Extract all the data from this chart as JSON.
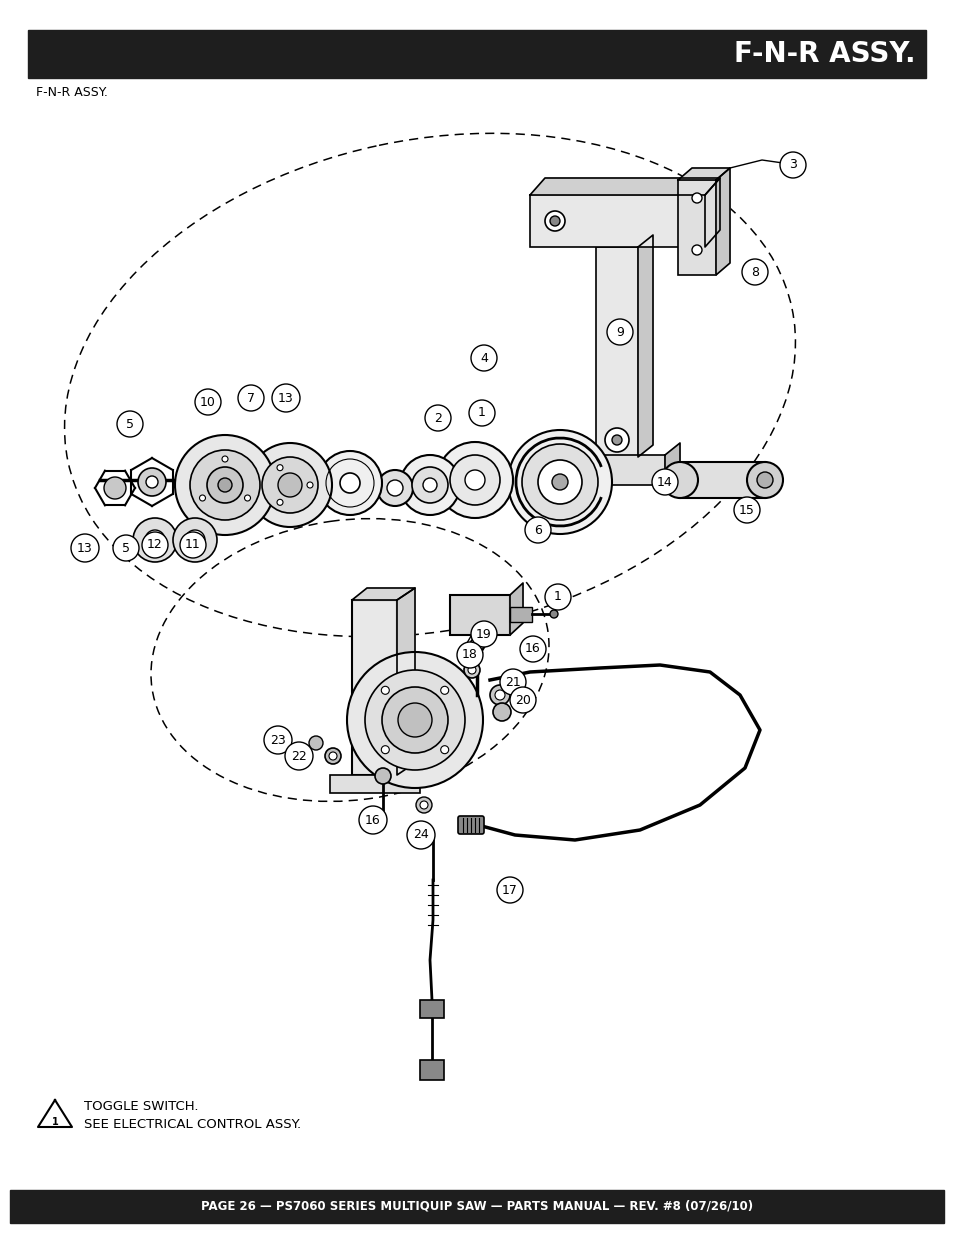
{
  "title_bar_text": "F-N-R ASSY.",
  "subtitle_text": "F-N-R ASSY.",
  "footer_text": "PAGE 26 — PS7060 SERIES MULTIQUIP SAW — PARTS MANUAL — REV. #8 (07/26/10)",
  "warning_line1": "TOGGLE SWITCH.",
  "warning_line2": "SEE ELECTRICAL CONTROL ASSY.",
  "title_bar_color": "#1e1e1e",
  "title_text_color": "#ffffff",
  "footer_bar_color": "#1e1e1e",
  "footer_text_color": "#ffffff",
  "page_bg": "#ffffff",
  "fig_width": 9.54,
  "fig_height": 12.35
}
